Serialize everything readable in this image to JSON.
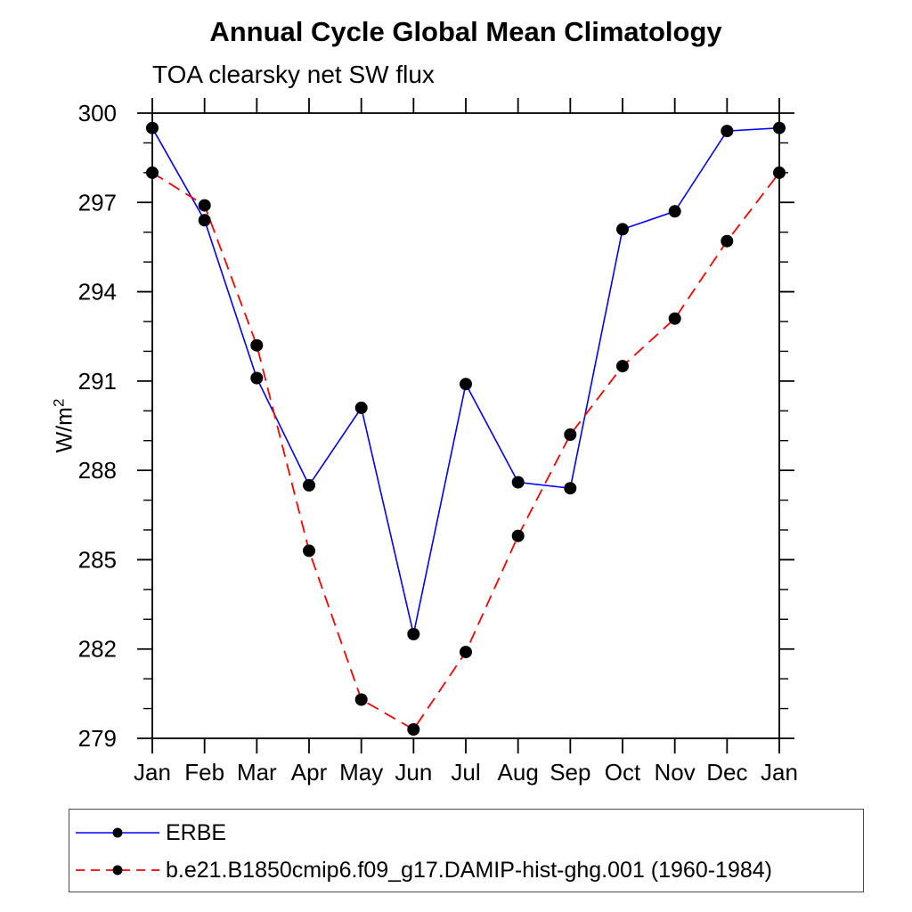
{
  "chart_data": {
    "type": "line",
    "title": "Annual Cycle Global Mean Climatology",
    "subtitle": "TOA clearsky net SW flux",
    "ylabel": "W/m^2",
    "ylabel_base": "W/m",
    "ylabel_exponent": "2",
    "xlabel": "",
    "categories": [
      "Jan",
      "Feb",
      "Mar",
      "Apr",
      "May",
      "Jun",
      "Jul",
      "Aug",
      "Sep",
      "Oct",
      "Nov",
      "Dec",
      "Jan"
    ],
    "ylim": [
      279,
      300
    ],
    "yticks_major": [
      279,
      282,
      285,
      288,
      291,
      294,
      297,
      300
    ],
    "ytick_minor_step": 1,
    "grid": false,
    "legend_position": "bottom-left",
    "axis_color": "#000000",
    "marker_color": "#000000",
    "series": [
      {
        "name": "ERBE",
        "color": "#0000ff",
        "line_style": "solid",
        "marker": "filled-circle",
        "values": [
          299.5,
          296.4,
          291.1,
          287.5,
          290.1,
          282.5,
          290.9,
          287.6,
          287.4,
          296.1,
          296.7,
          299.4,
          299.5
        ]
      },
      {
        "name": "b.e21.B1850cmip6.f09_g17.DAMIP-hist-ghg.001 (1960-1984)",
        "color": "#ff0000",
        "line_style": "dashed",
        "marker": "filled-circle",
        "values": [
          298.0,
          296.9,
          292.2,
          285.3,
          280.3,
          279.3,
          281.9,
          285.8,
          289.2,
          291.5,
          293.1,
          295.7,
          298.0
        ]
      }
    ]
  }
}
